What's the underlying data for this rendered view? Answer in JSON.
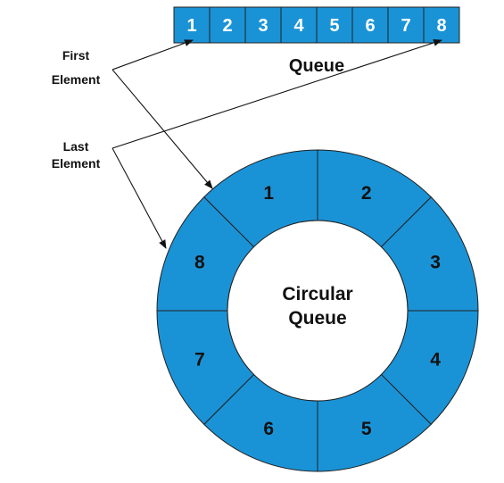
{
  "colors": {
    "fill": "#1a93d6",
    "stroke": "#202020",
    "text_dark": "#111111",
    "text_light": "#ffffff",
    "center": "#ffffff"
  },
  "queue": {
    "title": "Queue",
    "cells": [
      "1",
      "2",
      "3",
      "4",
      "5",
      "6",
      "7",
      "8"
    ]
  },
  "circular_queue": {
    "title_line1": "Circular",
    "title_line2": "Queue",
    "segments": [
      "1",
      "2",
      "3",
      "4",
      "5",
      "6",
      "7",
      "8"
    ]
  },
  "labels": {
    "first_line1": "First",
    "first_line2": "Element",
    "last_line1": "Last",
    "last_line2": "Element"
  }
}
